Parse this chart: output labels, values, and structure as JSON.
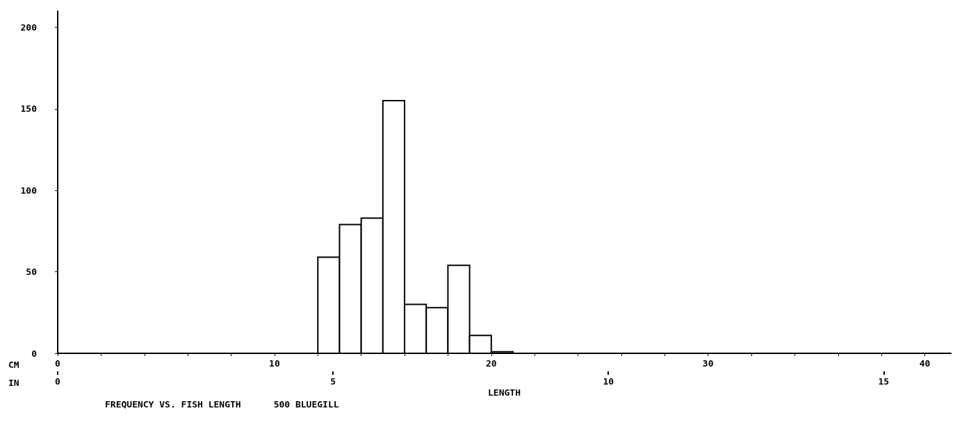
{
  "chart_data": {
    "type": "histogram",
    "title": "FREQUENCY VS. FISH LENGTH      500 BLUEGILL",
    "xlabel": "LENGTH",
    "bins": [
      12,
      13,
      14,
      15,
      16,
      17,
      18,
      19,
      20,
      21
    ],
    "values": [
      59,
      79,
      83,
      155,
      30,
      28,
      54,
      11,
      1
    ],
    "color": "#ffffff",
    "xlim": [
      0,
      41.2
    ],
    "xticks": [
      0,
      {
        "value": 2,
        "label": null
      },
      {
        "value": 4,
        "label": null
      },
      {
        "value": 6,
        "label": null
      },
      {
        "value": 8,
        "label": null
      },
      10,
      {
        "value": 12,
        "label": null
      },
      {
        "value": 14,
        "label": null
      },
      {
        "value": 16,
        "label": null
      },
      {
        "value": 18,
        "label": null
      },
      20,
      {
        "value": 22,
        "label": null
      },
      {
        "value": 24,
        "label": null
      },
      {
        "value": 26,
        "label": null
      },
      {
        "value": 28,
        "label": null
      },
      30,
      {
        "value": 32,
        "label": null
      },
      {
        "value": 34,
        "label": null
      },
      {
        "value": 36,
        "label": null
      },
      {
        "value": 38,
        "label": null
      },
      40
    ],
    "x2lim": [
      0,
      16.22
    ],
    "x2ticks": [
      0,
      5,
      10,
      15
    ],
    "ylim": [
      0,
      210
    ],
    "yticks": [
      0,
      50,
      100,
      150,
      200
    ],
    "grid": false,
    "annotations": [
      "CM",
      "IN"
    ]
  }
}
